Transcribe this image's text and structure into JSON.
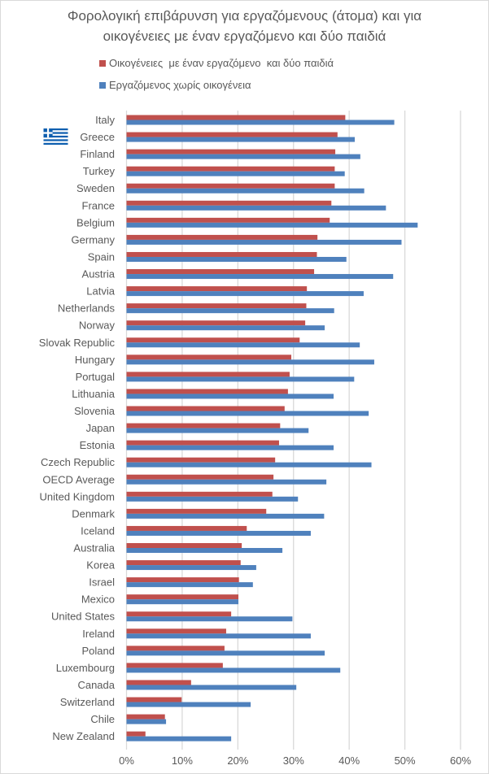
{
  "chart_data": {
    "type": "bar",
    "orientation": "horizontal",
    "title": "Φορολογική επιβάρυνση για εργαζόμενους (άτομα) και για οικογένειες με έναν εργαζόμενο και δύο παιδιά",
    "title_lines": [
      "Φορολογική επιβάρυνση για εργαζόμενους (άτομα) και για",
      "οικογένειες με έναν εργαζόμενο και δύο παιδιά"
    ],
    "xlabel": "",
    "ylabel": "",
    "xlim": [
      0,
      60
    ],
    "x_ticks": [
      "0%",
      "10%",
      "20%",
      "30%",
      "40%",
      "50%",
      "60%"
    ],
    "grid": true,
    "legend_position": "top",
    "categories": [
      "Italy",
      "Greece",
      "Finland",
      "Turkey",
      "Sweden",
      "France",
      "Belgium",
      "Germany",
      "Spain",
      "Austria",
      "Latvia",
      "Netherlands",
      "Norway",
      "Slovak Republic",
      "Hungary",
      "Portugal",
      "Lithuania",
      "Slovenia",
      "Japan",
      "Estonia",
      "Czech Republic",
      "OECD Average",
      "United Kingdom",
      "Denmark",
      "Iceland",
      "Australia",
      "Korea",
      "Israel",
      "Mexico",
      "United States",
      "Ireland",
      "Poland",
      "Luxembourg",
      "Canada",
      "Switzerland",
      "Chile",
      "New Zealand"
    ],
    "series": [
      {
        "name": "Οικογένειες  με έναν εργαζόμενο  και δύο παιδιά",
        "color": "#c0504d",
        "values": [
          39.3,
          37.9,
          37.5,
          37.4,
          37.4,
          36.8,
          36.5,
          34.3,
          34.2,
          33.7,
          32.4,
          32.3,
          32.1,
          31.1,
          29.6,
          29.3,
          29.0,
          28.4,
          27.6,
          27.4,
          26.7,
          26.4,
          26.2,
          25.1,
          21.6,
          20.7,
          20.5,
          20.2,
          20.1,
          18.8,
          17.9,
          17.6,
          17.3,
          11.6,
          9.9,
          6.9,
          3.4
        ]
      },
      {
        "name": "Εργαζόμενος χωρίς οικογένεια",
        "color": "#4f81bd",
        "values": [
          48.1,
          41.0,
          42.0,
          39.2,
          42.7,
          46.6,
          52.3,
          49.4,
          39.5,
          47.9,
          42.6,
          37.3,
          35.6,
          41.9,
          44.5,
          40.9,
          37.2,
          43.5,
          32.7,
          37.2,
          44.0,
          35.9,
          30.8,
          35.5,
          33.1,
          28.0,
          23.3,
          22.7,
          20.1,
          29.8,
          33.1,
          35.6,
          38.4,
          30.5,
          22.3,
          7.1,
          18.8
        ]
      }
    ],
    "highlight": {
      "category": "Greece",
      "icon": "greek-flag"
    }
  }
}
